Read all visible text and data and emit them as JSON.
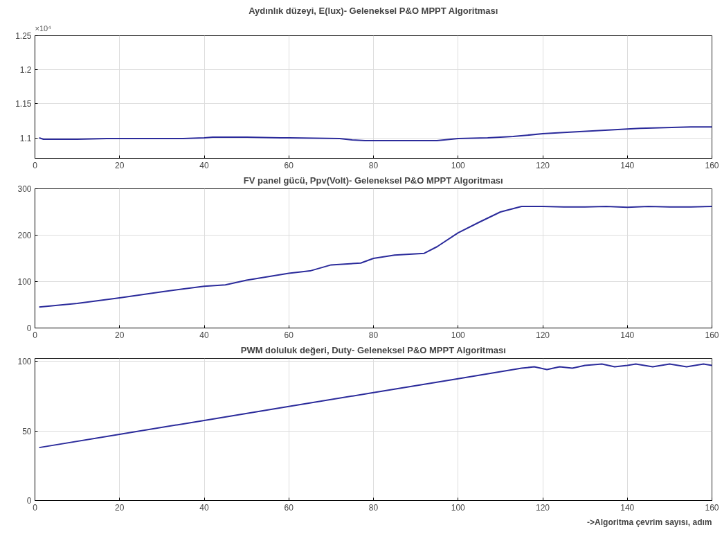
{
  "chart_data": [
    {
      "type": "line",
      "title": "Aydınlık düzeyi, E(lux)- Geleneksel P&O MPPT Algoritması",
      "annotations": [
        "×10⁴"
      ],
      "series": [
        {
          "color": "#2b2b9b",
          "x": [
            1,
            2,
            10,
            17,
            35,
            40,
            42,
            50,
            58,
            60,
            72,
            75,
            78,
            95,
            100,
            107,
            113,
            120,
            125,
            131,
            137,
            143,
            149,
            155,
            160
          ],
          "values": [
            1.1,
            1.098,
            1.098,
            1.099,
            1.099,
            1.1,
            1.101,
            1.101,
            1.1,
            1.1,
            1.099,
            1.097,
            1.096,
            1.096,
            1.099,
            1.1,
            1.102,
            1.106,
            1.108,
            1.11,
            1.112,
            1.114,
            1.115,
            1.116,
            1.116
          ]
        }
      ],
      "xlim": [
        0,
        160
      ],
      "xticks": [
        0,
        20,
        40,
        60,
        80,
        100,
        120,
        140,
        160
      ],
      "ylim": [
        1.07,
        1.25
      ],
      "yticks": [
        1.1,
        1.15,
        1.2,
        1.25
      ],
      "grid": true,
      "line_style": "solid",
      "marker": "none"
    },
    {
      "type": "line",
      "title": "FV panel gücü, Ppv(Volt)- Geleneksel P&O MPPT Algoritması",
      "series": [
        {
          "color": "#2b2b9b",
          "x": [
            1,
            10,
            20,
            30,
            40,
            45,
            50,
            60,
            65,
            70,
            77,
            80,
            85,
            92,
            95,
            100,
            105,
            110,
            115,
            120,
            125,
            130,
            135,
            140,
            145,
            150,
            155,
            160
          ],
          "values": [
            45,
            53,
            65,
            78,
            90,
            93,
            103,
            118,
            123,
            136,
            140,
            150,
            157,
            161,
            175,
            205,
            228,
            250,
            262,
            262,
            261,
            261,
            262,
            260,
            262,
            261,
            261,
            262
          ]
        }
      ],
      "xlim": [
        0,
        160
      ],
      "xticks": [
        0,
        20,
        40,
        60,
        80,
        100,
        120,
        140,
        160
      ],
      "ylim": [
        0,
        300
      ],
      "yticks": [
        0,
        100,
        200,
        300
      ],
      "grid": true,
      "line_style": "solid",
      "marker": "none"
    },
    {
      "type": "line",
      "title": "PWM doluluk değeri, Duty- Geleneksel P&O MPPT Algoritması",
      "xlabel": "->Algoritma çevrim sayısı, adım",
      "series": [
        {
          "color": "#2b2b9b",
          "x": [
            1,
            20,
            40,
            60,
            80,
            100,
            115,
            118,
            121,
            124,
            127,
            130,
            134,
            137,
            140,
            142,
            146,
            150,
            154,
            158,
            160
          ],
          "values": [
            38,
            47.5,
            57.5,
            67.5,
            77.5,
            87.5,
            95,
            96,
            94,
            96,
            95,
            97,
            98,
            96,
            97,
            98,
            96,
            98,
            96,
            98,
            97
          ]
        }
      ],
      "xlim": [
        0,
        160
      ],
      "xticks": [
        0,
        20,
        40,
        60,
        80,
        100,
        120,
        140,
        160
      ],
      "ylim": [
        0,
        102
      ],
      "yticks": [
        0,
        50,
        100
      ],
      "grid": true,
      "line_style": "solid",
      "marker": "none"
    }
  ]
}
